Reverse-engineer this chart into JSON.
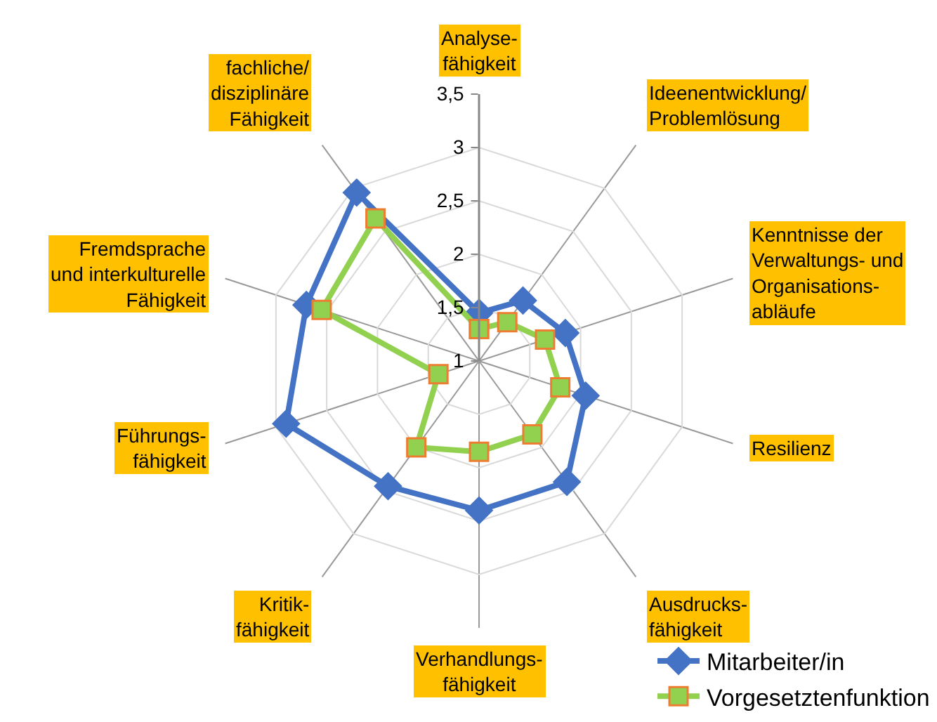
{
  "chart_data": {
    "type": "radar",
    "categories": [
      "Analyse-\nfähigkeit",
      "Ideenentwicklung/\nProblemlösung",
      "Kenntnisse der\nVerwaltungs- und\nOrganisations-\nabläufe",
      "Resilienz",
      "Ausdrucks-\nfähigkeit",
      "Verhandlungs-\nfähigkeit",
      "Kritik-\nfähigkeit",
      "Führungs-\nfähigkeit",
      "Fremdsprache\nund interkulturelle\nFähigkeit",
      "fachliche/\ndisziplinäre\nFähigkeit"
    ],
    "series": [
      {
        "name": "Mitarbeiter/in",
        "color": "#4472c4",
        "marker": "diamond",
        "values": [
          1.45,
          1.7,
          1.85,
          2.05,
          2.4,
          2.4,
          2.45,
          2.9,
          2.7,
          2.95
        ]
      },
      {
        "name": "Vorgesetztenfunktion",
        "color": "#92d050",
        "marker": "square",
        "values": [
          1.3,
          1.45,
          1.65,
          1.8,
          1.85,
          1.85,
          2.0,
          1.4,
          2.55,
          2.65
        ]
      }
    ],
    "ylim": [
      1,
      3.5
    ],
    "yticks": [
      1,
      {
        "value": 1.5,
        "label": "1,5"
      },
      2,
      {
        "value": 2.5,
        "label": "2,5"
      },
      3,
      {
        "value": 3.5,
        "label": "3,5"
      }
    ],
    "grid": true,
    "legend": "bottom right"
  }
}
